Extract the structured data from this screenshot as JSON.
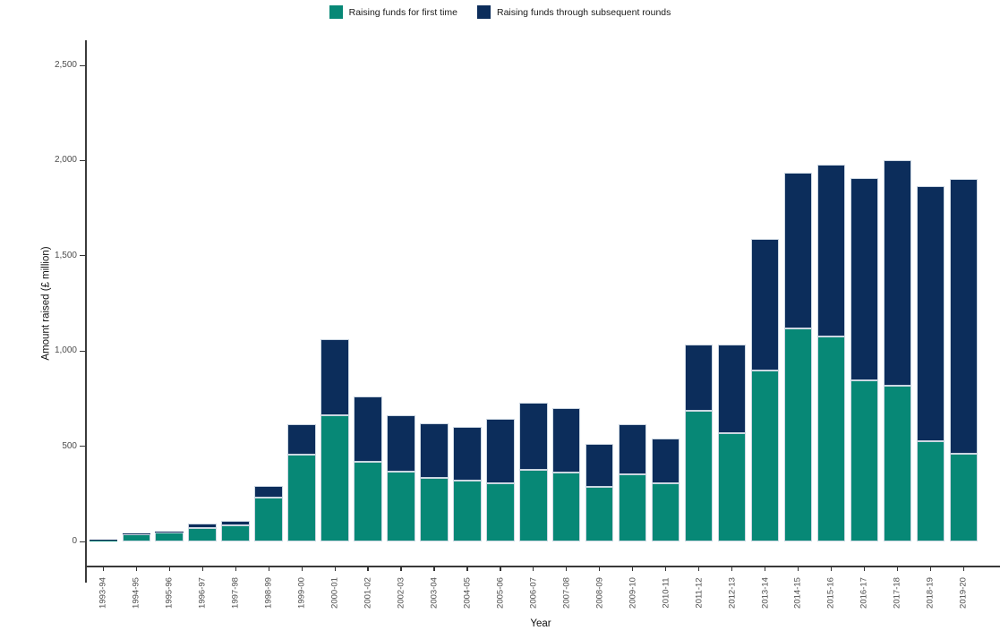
{
  "legend": {
    "items": [
      {
        "label": "Raising funds for first time",
        "color": "#078876"
      },
      {
        "label": "Raising funds through subsequent rounds",
        "color": "#0C2D5B"
      }
    ]
  },
  "chart_data": {
    "type": "bar",
    "stacked": true,
    "title": "",
    "xlabel": "Year",
    "ylabel": "Amount raised (£ million)",
    "legend_position": "top",
    "grid": false,
    "ylim": [
      0,
      2630
    ],
    "y_ticks": [
      {
        "value": 0,
        "label": "0"
      },
      {
        "value": 500,
        "label": "500"
      },
      {
        "value": 1000,
        "label": "1,000"
      },
      {
        "value": 1500,
        "label": "1,500"
      },
      {
        "value": 2000,
        "label": "2,000"
      },
      {
        "value": 2500,
        "label": "2,500"
      }
    ],
    "categories": [
      "1993-94",
      "1994-95",
      "1995-96",
      "1996-97",
      "1997-98",
      "1998-99",
      "1999-00",
      "2000-01",
      "2001-02",
      "2002-03",
      "2003-04",
      "2004-05",
      "2005-06",
      "2006-07",
      "2007-08",
      "2008-09",
      "2009-10",
      "2010-11",
      "2011-12",
      "2012-13",
      "2013-14",
      "2014-15",
      "2015-16",
      "2016-17",
      "2017-18",
      "2018-19",
      "2019-20"
    ],
    "series": [
      {
        "name": "Raising funds for first time",
        "color": "#078876",
        "values": [
          3,
          36,
          45,
          70,
          85,
          230,
          458,
          665,
          418,
          368,
          334,
          318,
          305,
          375,
          360,
          287,
          352,
          305,
          685,
          567,
          898,
          1120,
          1076,
          847,
          818,
          528,
          462
        ]
      },
      {
        "name": "Raising funds through subsequent rounds",
        "color": "#0C2D5B",
        "values": [
          1,
          5,
          5,
          22,
          23,
          60,
          157,
          396,
          342,
          296,
          288,
          285,
          340,
          353,
          340,
          227,
          265,
          235,
          347,
          465,
          689,
          814,
          902,
          1062,
          1184,
          1339,
          1441
        ]
      }
    ],
    "totals": [
      4,
      41,
      50,
      92,
      108,
      290,
      615,
      1061,
      760,
      664,
      622,
      603,
      645,
      728,
      700,
      514,
      617,
      540,
      1032,
      1032,
      1587,
      1934,
      1978,
      1909,
      2002,
      1867,
      1903
    ]
  }
}
